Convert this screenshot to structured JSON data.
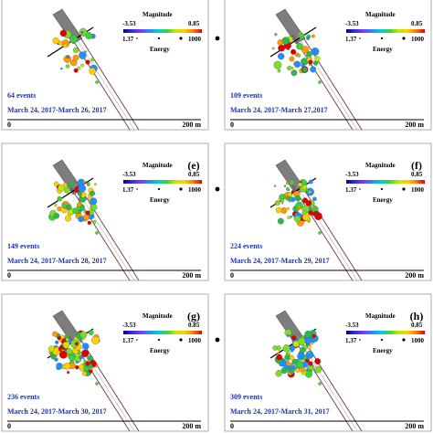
{
  "legend": {
    "magnitude_title": "Magnitude",
    "magnitude_min": "-3.53",
    "magnitude_max": "0.85",
    "energy_title": "Energy",
    "energy_min": "1.37",
    "energy_max": "1000"
  },
  "scale": {
    "start": "0",
    "end": "200 m"
  },
  "panels": [
    {
      "id": "c",
      "label": "",
      "events": "64 events",
      "dates": "March 24, 2017-March 26, 2017"
    },
    {
      "id": "d",
      "label": "",
      "events": "109 events",
      "dates": "March 24, 2017-March 27,2017"
    },
    {
      "id": "e",
      "label": "(e)",
      "events": "149 events",
      "dates": "March 24, 2017-March 28, 2017"
    },
    {
      "id": "f",
      "label": "(f)",
      "events": "224 events",
      "dates": "March 24, 2017-March 29, 2017"
    },
    {
      "id": "g",
      "label": "(g)",
      "events": "236 events",
      "dates": "March 24, 2017-March 30, 2017"
    },
    {
      "id": "h",
      "label": "(h)",
      "events": "309 events",
      "dates": "March 24, 2017-March 31, 2017"
    }
  ],
  "colors": {
    "colorbar": [
      "#0000a0",
      "#3b2bd6",
      "#7a3cff",
      "#1f8fff",
      "#00d0d0",
      "#3bd23b",
      "#c6e600",
      "#ffd000",
      "#ff7a00",
      "#e00000"
    ],
    "tunnel": "#7d7d7d",
    "tunnel_outline": "#5a5a5a",
    "rail": "#7a4a4a"
  }
}
